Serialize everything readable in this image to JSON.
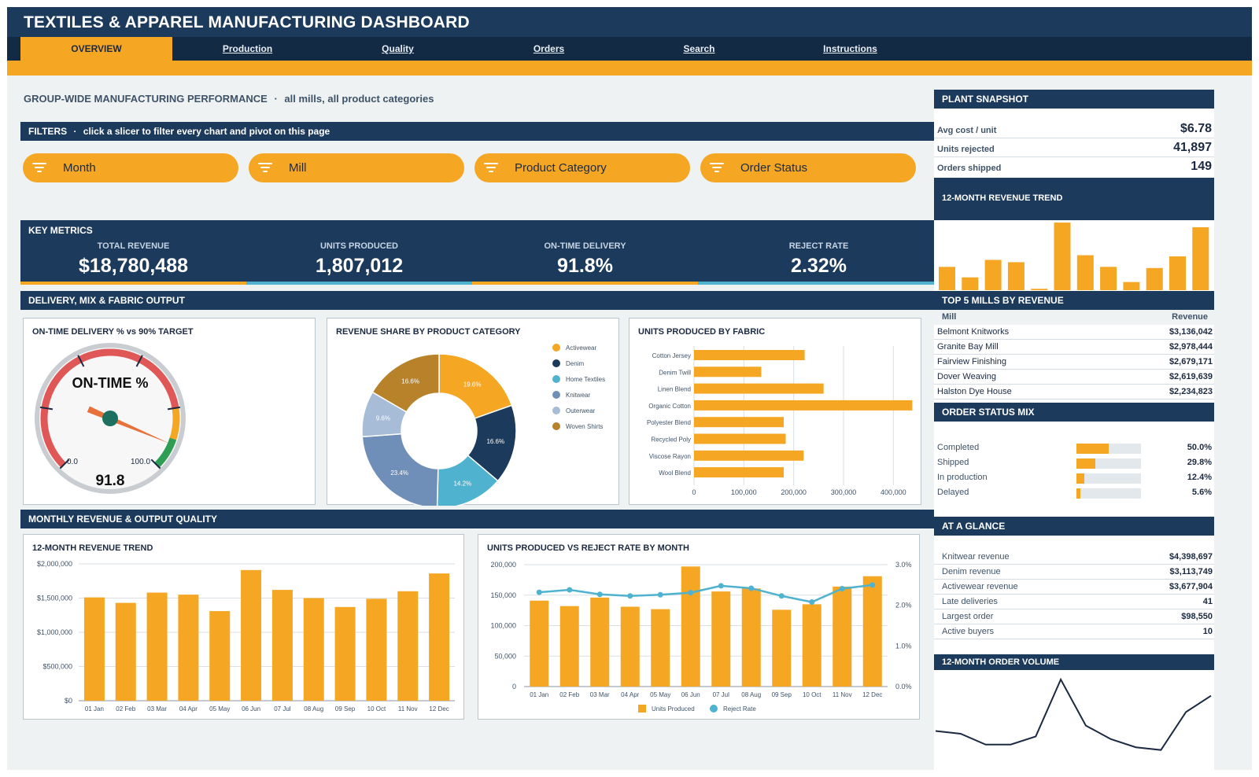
{
  "header": {
    "title": "TEXTILES & APPAREL MANUFACTURING DASHBOARD"
  },
  "nav": {
    "tabs": [
      "OVERVIEW",
      "Production",
      "Quality",
      "Orders",
      "Search",
      "Instructions"
    ],
    "active": "OVERVIEW"
  },
  "subtitle": {
    "main": "GROUP-WIDE MANUFACTURING PERFORMANCE",
    "sep": "·",
    "detail": "all mills, all product categories"
  },
  "filters": {
    "title": "FILTERS",
    "hint": "click a slicer to filter every chart and pivot on this page",
    "slicers": [
      "Month",
      "Mill",
      "Product Category",
      "Order Status"
    ]
  },
  "kpis": {
    "title": "KEY METRICS",
    "items": [
      {
        "label": "TOTAL REVENUE",
        "value": "$18,780,488"
      },
      {
        "label": "UNITS PRODUCED",
        "value": "1,807,012"
      },
      {
        "label": "ON-TIME DELIVERY",
        "value": "91.8%"
      },
      {
        "label": "REJECT RATE",
        "value": "2.32%"
      }
    ]
  },
  "sections": {
    "delivery": "DELIVERY, MIX & FABRIC OUTPUT",
    "monthly": "MONTHLY REVENUE & OUTPUT QUALITY"
  },
  "gauge": {
    "title": "ON-TIME DELIVERY % vs 90% TARGET",
    "face_label": "ON-TIME %",
    "value": 91.8,
    "value_text": "91.8",
    "min_label": "0.0",
    "max_label": "100.0",
    "range": [
      0,
      100
    ],
    "target": 90
  },
  "colors": {
    "navy": "#1c3a5c",
    "orange": "#f5a623",
    "teal": "#4fb3cf",
    "slate": "#6f8fb8",
    "light_blue": "#a7bcd6",
    "brown": "#b8822a",
    "line": "#1b2a41"
  },
  "chart_data": [
    {
      "id": "revenue-share",
      "type": "pie",
      "title": "REVENUE SHARE BY PRODUCT CATEGORY",
      "categories": [
        "Activewear",
        "Denim",
        "Home Textiles",
        "Knitwear",
        "Outerwear",
        "Woven Shirts"
      ],
      "values": [
        19.6,
        16.6,
        14.2,
        23.4,
        9.6,
        16.6
      ],
      "labels": [
        "19.6%",
        "16.6%",
        "14.2%",
        "23.4%",
        "9.6%",
        "16.6%"
      ],
      "colors": [
        "#f5a623",
        "#1c3a5c",
        "#4fb3cf",
        "#6f8fb8",
        "#a7bcd6",
        "#b8822a"
      ],
      "legend": "right"
    },
    {
      "id": "units-by-fabric",
      "type": "bar",
      "orientation": "horizontal",
      "title": "UNITS PRODUCED BY FABRIC",
      "categories": [
        "Cotton Jersey",
        "Denim Twill",
        "Linen Blend",
        "Organic Cotton",
        "Polyester Blend",
        "Recycled Poly",
        "Viscose Rayon",
        "Wool Blend"
      ],
      "values": [
        222000,
        135000,
        260000,
        438000,
        180000,
        184000,
        220000,
        180000
      ],
      "xticks": [
        "0",
        "100,000",
        "200,000",
        "300,000",
        "400,000"
      ],
      "xlim": [
        0,
        450000
      ],
      "grid": true
    },
    {
      "id": "revenue-trend",
      "type": "bar",
      "title": "12-MONTH REVENUE TREND",
      "categories": [
        "01 Jan",
        "02 Feb",
        "03 Mar",
        "04 Apr",
        "05 May",
        "06 Jun",
        "07 Jul",
        "08 Aug",
        "09 Sep",
        "10 Oct",
        "11 Nov",
        "12 Dec"
      ],
      "values": [
        1510000,
        1430000,
        1580000,
        1550000,
        1310000,
        1910000,
        1620000,
        1500000,
        1370000,
        1490000,
        1600000,
        1860000
      ],
      "yticks": [
        "$0",
        "$500,000",
        "$1,000,000",
        "$1,500,000",
        "$2,000,000"
      ],
      "ylim": [
        0,
        2000000
      ],
      "grid": true
    },
    {
      "id": "units-vs-reject",
      "type": "bar",
      "title": "UNITS PRODUCED VS REJECT RATE BY MONTH",
      "categories": [
        "01 Jan",
        "02 Feb",
        "03 Mar",
        "04 Apr",
        "05 May",
        "06 Jun",
        "07 Jul",
        "08 Aug",
        "09 Sep",
        "10 Oct",
        "11 Nov",
        "12 Dec"
      ],
      "series": [
        {
          "name": "Units Produced",
          "type": "bar",
          "values": [
            141000,
            132000,
            146000,
            131000,
            127000,
            197000,
            156000,
            161000,
            126000,
            135000,
            164000,
            181000
          ]
        },
        {
          "name": "Reject Rate",
          "type": "line",
          "values": [
            2.32,
            2.38,
            2.27,
            2.23,
            2.26,
            2.31,
            2.48,
            2.42,
            2.23,
            2.08,
            2.41,
            2.5
          ]
        }
      ],
      "yticks": [
        "0",
        "50,000",
        "100,000",
        "150,000",
        "200,000"
      ],
      "ylim": [
        0,
        200000
      ],
      "y2ticks": [
        "0.0%",
        "1.0%",
        "2.0%",
        "3.0%"
      ],
      "y2lim": [
        0,
        3
      ],
      "legend": "bottom",
      "grid": true
    },
    {
      "id": "side-revenue-trend",
      "type": "bar",
      "title": "12-MONTH REVENUE TREND",
      "values": [
        1.0,
        0.55,
        1.3,
        1.2,
        0.06,
        2.9,
        1.5,
        1.0,
        0.35,
        0.95,
        1.45,
        2.7
      ]
    },
    {
      "id": "side-order-volume",
      "type": "line",
      "title": "12-MONTH ORDER VOLUME",
      "values": [
        10,
        9,
        5,
        5,
        8,
        29,
        12,
        7,
        4,
        3,
        17,
        23
      ]
    }
  ],
  "plant_snapshot": {
    "title": "PLANT SNAPSHOT",
    "rows": [
      {
        "label": "Avg cost / unit",
        "value": "$6.78"
      },
      {
        "label": "Units rejected",
        "value": "41,897"
      },
      {
        "label": "Orders shipped",
        "value": "149"
      }
    ]
  },
  "top_mills": {
    "title": "TOP 5 MILLS BY REVENUE",
    "headers": [
      "Mill",
      "Revenue"
    ],
    "rows": [
      [
        "Belmont Knitworks",
        "$3,136,042"
      ],
      [
        "Granite Bay Mill",
        "$2,978,444"
      ],
      [
        "Fairview Finishing",
        "$2,679,171"
      ],
      [
        "Dover Weaving",
        "$2,619,639"
      ],
      [
        "Halston Dye House",
        "$2,234,823"
      ]
    ]
  },
  "order_status": {
    "title": "ORDER STATUS MIX",
    "rows": [
      {
        "label": "Completed",
        "value": "50.0%",
        "fraction": 0.5
      },
      {
        "label": "Shipped",
        "value": "29.8%",
        "fraction": 0.298
      },
      {
        "label": "In production",
        "value": "12.4%",
        "fraction": 0.124
      },
      {
        "label": "Delayed",
        "value": "5.6%",
        "fraction": 0.056
      }
    ]
  },
  "at_a_glance": {
    "title": "AT A GLANCE",
    "rows": [
      [
        "Knitwear revenue",
        "$4,398,697"
      ],
      [
        "Denim revenue",
        "$3,113,749"
      ],
      [
        "Activewear revenue",
        "$3,677,904"
      ],
      [
        "Late deliveries",
        "41"
      ],
      [
        "Largest order",
        "$98,550"
      ],
      [
        "Active buyers",
        "10"
      ]
    ]
  }
}
